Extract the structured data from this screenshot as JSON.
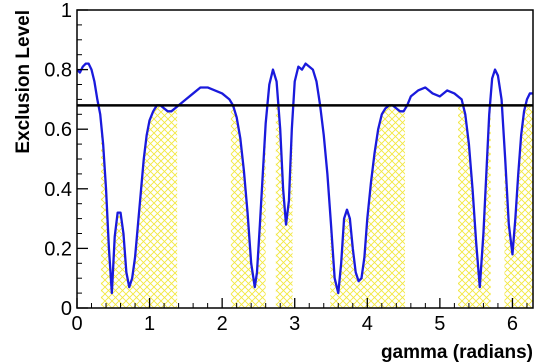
{
  "chart_data": {
    "type": "line",
    "title": "",
    "xlabel": "gamma (radians)",
    "ylabel": "Exclusion Level",
    "xlim": [
      0,
      6.2832
    ],
    "ylim": [
      0,
      1
    ],
    "x_ticks": [
      "0",
      "1",
      "2",
      "3",
      "4",
      "5",
      "6"
    ],
    "y_ticks": [
      "0",
      "0.2",
      "0.4",
      "0.6",
      "0.8",
      "1"
    ],
    "grid": false,
    "threshold": 0.68,
    "excluded_regions": [
      [
        0.33,
        1.38
      ],
      [
        2.12,
        2.6
      ],
      [
        2.74,
        2.97
      ],
      [
        3.49,
        4.52
      ],
      [
        5.25,
        5.7
      ],
      [
        5.89,
        6.2832
      ]
    ],
    "series": [
      {
        "x": [
          0.0,
          0.04,
          0.08,
          0.12,
          0.16,
          0.2,
          0.24,
          0.28,
          0.32,
          0.36,
          0.4,
          0.44,
          0.48,
          0.52,
          0.56,
          0.6,
          0.64,
          0.68,
          0.72,
          0.76,
          0.8,
          0.84,
          0.88,
          0.92,
          0.96,
          1.0,
          1.05,
          1.1,
          1.15,
          1.2,
          1.25,
          1.3,
          1.35,
          1.4,
          1.45,
          1.5,
          1.6,
          1.7,
          1.8,
          1.9,
          2.0,
          2.1,
          2.15,
          2.2,
          2.25,
          2.3,
          2.35,
          2.4,
          2.45,
          2.48,
          2.52,
          2.56,
          2.6,
          2.65,
          2.7,
          2.75,
          2.8,
          2.84,
          2.88,
          2.92,
          2.96,
          3.0,
          3.05,
          3.1,
          3.15,
          3.2,
          3.25,
          3.3,
          3.35,
          3.4,
          3.45,
          3.5,
          3.55,
          3.6,
          3.64,
          3.68,
          3.72,
          3.76,
          3.8,
          3.84,
          3.88,
          3.92,
          3.96,
          4.0,
          4.05,
          4.1,
          4.15,
          4.2,
          4.25,
          4.3,
          4.35,
          4.4,
          4.45,
          4.5,
          4.55,
          4.6,
          4.7,
          4.8,
          4.9,
          5.0,
          5.1,
          5.2,
          5.3,
          5.35,
          5.4,
          5.45,
          5.5,
          5.55,
          5.6,
          5.64,
          5.68,
          5.72,
          5.76,
          5.8,
          5.85,
          5.9,
          5.95,
          6.0,
          6.04,
          6.08,
          6.12,
          6.16,
          6.2,
          6.24,
          6.2832
        ],
        "values": [
          0.8,
          0.79,
          0.81,
          0.82,
          0.82,
          0.8,
          0.76,
          0.7,
          0.65,
          0.55,
          0.4,
          0.2,
          0.05,
          0.24,
          0.32,
          0.32,
          0.25,
          0.12,
          0.07,
          0.1,
          0.17,
          0.28,
          0.39,
          0.5,
          0.58,
          0.63,
          0.66,
          0.68,
          0.68,
          0.67,
          0.66,
          0.66,
          0.67,
          0.68,
          0.69,
          0.7,
          0.72,
          0.74,
          0.74,
          0.73,
          0.72,
          0.7,
          0.68,
          0.64,
          0.57,
          0.46,
          0.32,
          0.15,
          0.07,
          0.12,
          0.28,
          0.45,
          0.62,
          0.75,
          0.8,
          0.76,
          0.6,
          0.4,
          0.28,
          0.36,
          0.6,
          0.76,
          0.81,
          0.8,
          0.82,
          0.81,
          0.8,
          0.76,
          0.68,
          0.58,
          0.45,
          0.28,
          0.1,
          0.05,
          0.15,
          0.3,
          0.33,
          0.3,
          0.2,
          0.12,
          0.09,
          0.1,
          0.17,
          0.3,
          0.42,
          0.52,
          0.6,
          0.65,
          0.67,
          0.68,
          0.68,
          0.67,
          0.66,
          0.66,
          0.68,
          0.71,
          0.73,
          0.74,
          0.72,
          0.71,
          0.73,
          0.72,
          0.7,
          0.65,
          0.55,
          0.4,
          0.22,
          0.07,
          0.25,
          0.45,
          0.65,
          0.77,
          0.8,
          0.78,
          0.7,
          0.5,
          0.28,
          0.18,
          0.3,
          0.45,
          0.58,
          0.66,
          0.7,
          0.72,
          0.72
        ]
      }
    ]
  }
}
